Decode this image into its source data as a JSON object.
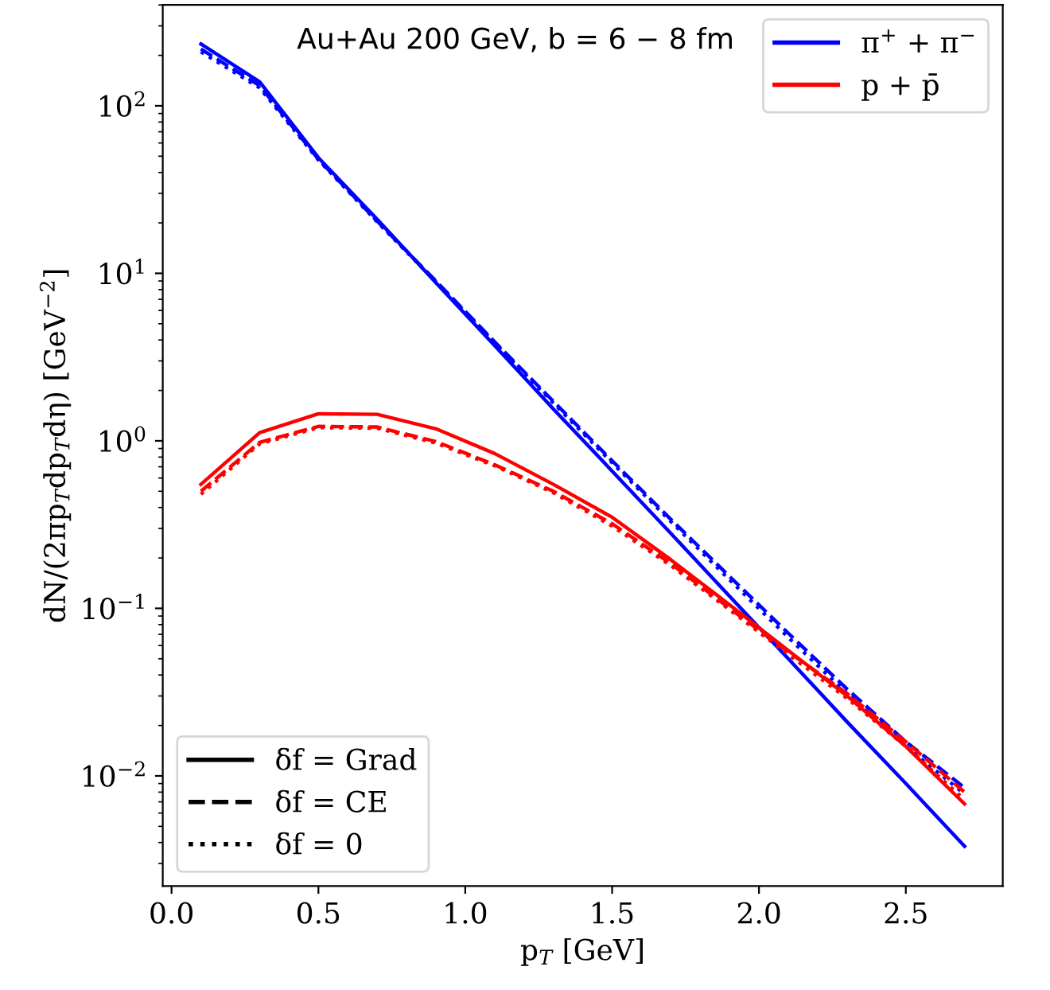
{
  "chart_data": {
    "type": "line",
    "title": "Au+Au 200 GeV, b = 6 − 8 fm",
    "xlabel": "p$_{T}$ [GeV]",
    "ylabel": "dN/(2πp$_{T}$dp$_{T}$dη) [GeV$^{−2}$]",
    "x": [
      0.1,
      0.3,
      0.5,
      0.7,
      0.9,
      1.1,
      1.3,
      1.5,
      1.7,
      1.9,
      2.1,
      2.3,
      2.5,
      2.7
    ],
    "series": [
      {
        "name": "π$^{+}$ + π$^{−}$",
        "color": "#0000ff",
        "line_style": "solid",
        "values": [
          234,
          139,
          49,
          21,
          8.8,
          3.7,
          1.55,
          0.66,
          0.28,
          0.118,
          0.05,
          0.021,
          0.009,
          0.0038
        ]
      },
      {
        "color": "#0000ff",
        "line_style": "dashed",
        "values": [
          218,
          132,
          48,
          20.5,
          9.0,
          3.9,
          1.72,
          0.76,
          0.34,
          0.155,
          0.071,
          0.033,
          0.016,
          0.0085
        ]
      },
      {
        "color": "#0000ff",
        "line_style": "dotted",
        "values": [
          210,
          128,
          47.5,
          20.3,
          8.9,
          3.85,
          1.68,
          0.74,
          0.33,
          0.148,
          0.067,
          0.031,
          0.015,
          0.0078
        ]
      },
      {
        "name": "p + p̄",
        "color": "#ff0000",
        "line_style": "solid",
        "values": [
          0.55,
          1.12,
          1.45,
          1.44,
          1.18,
          0.84,
          0.55,
          0.35,
          0.195,
          0.105,
          0.056,
          0.03,
          0.015,
          0.0068
        ]
      },
      {
        "color": "#ff0000",
        "line_style": "dashed",
        "values": [
          0.5,
          0.98,
          1.22,
          1.21,
          0.99,
          0.72,
          0.5,
          0.32,
          0.185,
          0.1,
          0.055,
          0.031,
          0.016,
          0.008
        ]
      },
      {
        "color": "#ff0000",
        "line_style": "dotted",
        "values": [
          0.48,
          0.96,
          1.2,
          1.19,
          0.97,
          0.71,
          0.49,
          0.31,
          0.18,
          0.098,
          0.053,
          0.029,
          0.015,
          0.0072
        ]
      }
    ],
    "annotations": [
      "δf = Grad",
      "δf = CE",
      "δf = 0"
    ],
    "log": "y",
    "xlim": [
      -0.03,
      2.83
    ],
    "xticks": [
      {
        "value": 0,
        "label": "0.0"
      },
      0.5,
      {
        "value": 1,
        "label": "1.0"
      },
      1.5,
      {
        "value": 2,
        "label": "2.0"
      },
      2.5
    ],
    "ylim": [
      0.0022,
      400
    ],
    "yticks": [
      {
        "value": 0.01,
        "label": "10$^{−2}$"
      },
      {
        "value": 0.1,
        "label": "10$^{−1}$"
      },
      {
        "value": 1,
        "label": "10$^{0}$"
      },
      {
        "value": 10,
        "label": "10$^{1}$"
      },
      {
        "value": 100,
        "label": "10$^{2}$"
      }
    ],
    "grid": false,
    "legend": "top right"
  }
}
